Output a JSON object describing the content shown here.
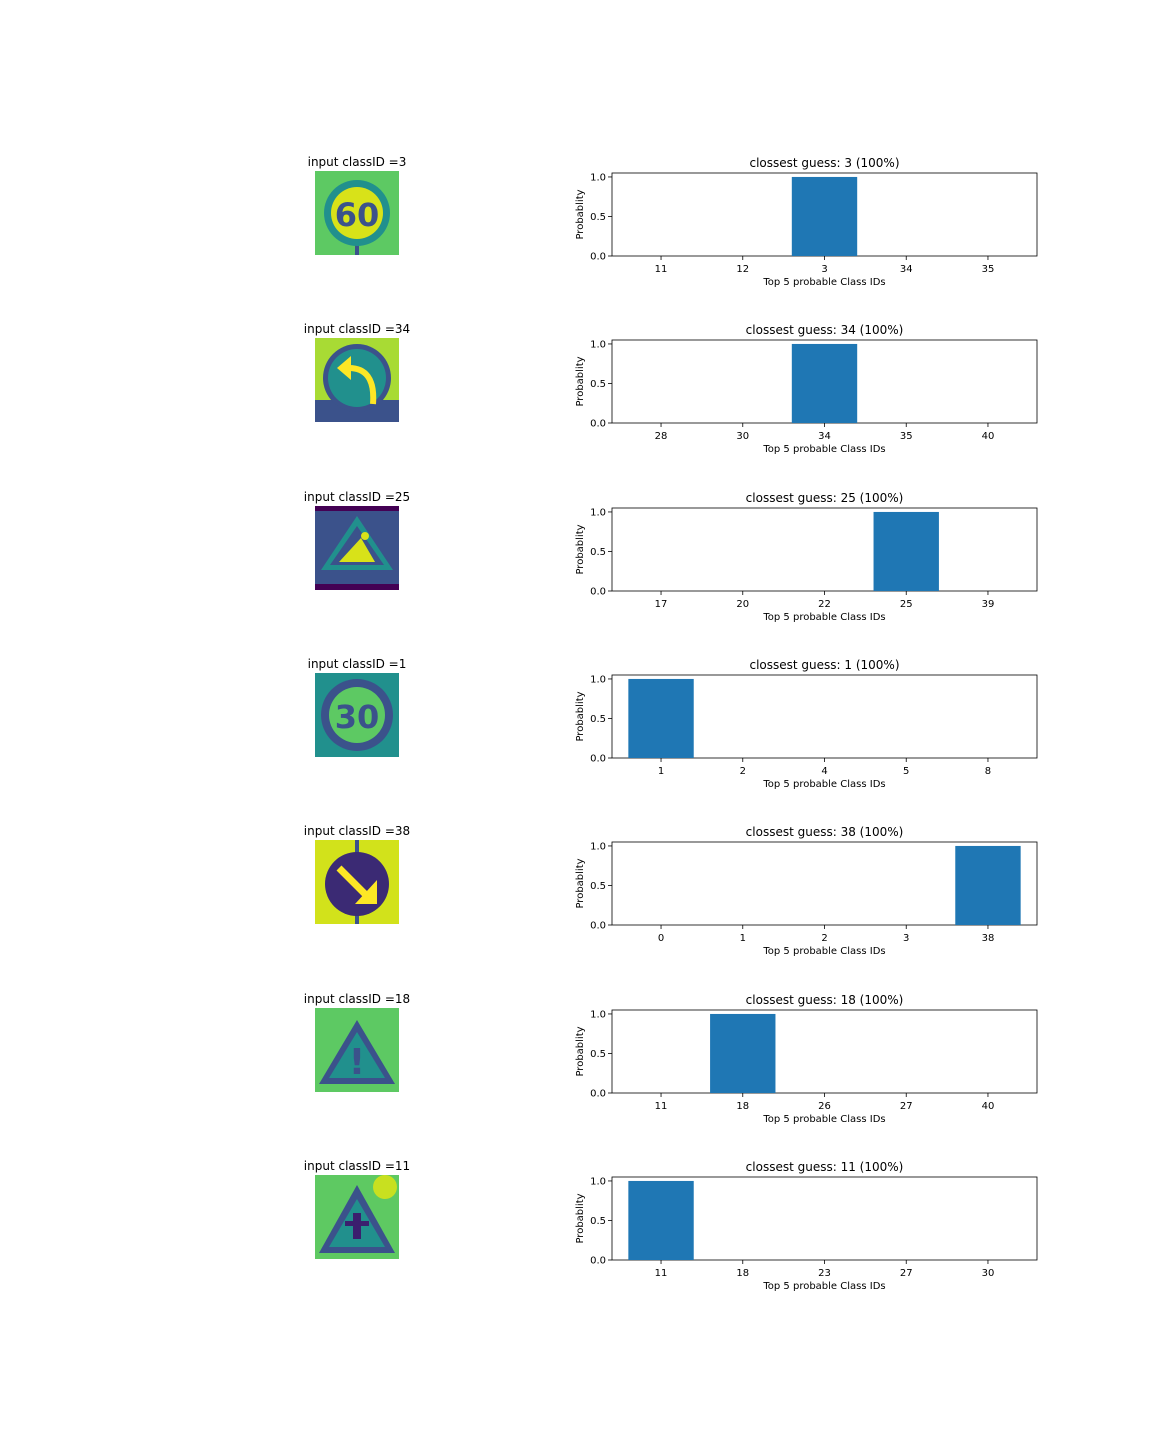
{
  "palette": {
    "bar": "#1f77b4",
    "viridis": [
      "#440154",
      "#3b528b",
      "#21908d",
      "#5dc963",
      "#fde725"
    ]
  },
  "rows": [
    {
      "input_label": "input classID =3",
      "sign_icon": "speed-limit-60-sign-icon",
      "sign_text": "60"
    },
    {
      "input_label": "input classID =34",
      "sign_icon": "turn-left-ahead-sign-icon",
      "sign_text": ""
    },
    {
      "input_label": "input classID =25",
      "sign_icon": "road-work-sign-icon",
      "sign_text": ""
    },
    {
      "input_label": "input classID =1",
      "sign_icon": "speed-limit-30-sign-icon",
      "sign_text": "30"
    },
    {
      "input_label": "input classID =38",
      "sign_icon": "keep-right-sign-icon",
      "sign_text": ""
    },
    {
      "input_label": "input classID =18",
      "sign_icon": "general-caution-sign-icon",
      "sign_text": "!"
    },
    {
      "input_label": "input classID =11",
      "sign_icon": "right-of-way-sign-icon",
      "sign_text": ""
    }
  ],
  "chart_data": [
    {
      "type": "bar",
      "title": "clossest guess: 3 (100%)",
      "xlabel": "Top 5 probable Class IDs",
      "ylabel": "Probablity",
      "categories": [
        "11",
        "12",
        "3",
        "34",
        "35"
      ],
      "values": [
        0,
        0,
        1.0,
        0,
        0
      ],
      "ylim": [
        0,
        1.05
      ],
      "yticks": [
        "0.0",
        "0.5",
        "1.0"
      ],
      "grid": false
    },
    {
      "type": "bar",
      "title": "clossest guess: 34 (100%)",
      "xlabel": "Top 5 probable Class IDs",
      "ylabel": "Probablity",
      "categories": [
        "28",
        "30",
        "34",
        "35",
        "40"
      ],
      "values": [
        0,
        0,
        1.0,
        0,
        0
      ],
      "ylim": [
        0,
        1.05
      ],
      "yticks": [
        "0.0",
        "0.5",
        "1.0"
      ],
      "grid": false
    },
    {
      "type": "bar",
      "title": "clossest guess: 25 (100%)",
      "xlabel": "Top 5 probable Class IDs",
      "ylabel": "Probablity",
      "categories": [
        "17",
        "20",
        "22",
        "25",
        "39"
      ],
      "values": [
        0,
        0,
        0,
        1.0,
        0
      ],
      "ylim": [
        0,
        1.05
      ],
      "yticks": [
        "0.0",
        "0.5",
        "1.0"
      ],
      "grid": false
    },
    {
      "type": "bar",
      "title": "clossest guess: 1 (100%)",
      "xlabel": "Top 5 probable Class IDs",
      "ylabel": "Probablity",
      "categories": [
        "1",
        "2",
        "4",
        "5",
        "8"
      ],
      "values": [
        1.0,
        0,
        0,
        0,
        0
      ],
      "ylim": [
        0,
        1.05
      ],
      "yticks": [
        "0.0",
        "0.5",
        "1.0"
      ],
      "grid": false
    },
    {
      "type": "bar",
      "title": "clossest guess: 38 (100%)",
      "xlabel": "Top 5 probable Class IDs",
      "ylabel": "Probablity",
      "categories": [
        "0",
        "1",
        "2",
        "3",
        "38"
      ],
      "values": [
        0,
        0,
        0,
        0,
        1.0
      ],
      "ylim": [
        0,
        1.05
      ],
      "yticks": [
        "0.0",
        "0.5",
        "1.0"
      ],
      "grid": false
    },
    {
      "type": "bar",
      "title": "clossest guess: 18 (100%)",
      "xlabel": "Top 5 probable Class IDs",
      "ylabel": "Probablity",
      "categories": [
        "11",
        "18",
        "26",
        "27",
        "40"
      ],
      "values": [
        0,
        1.0,
        0,
        0,
        0
      ],
      "ylim": [
        0,
        1.05
      ],
      "yticks": [
        "0.0",
        "0.5",
        "1.0"
      ],
      "grid": false
    },
    {
      "type": "bar",
      "title": "clossest guess: 11 (100%)",
      "xlabel": "Top 5 probable Class IDs",
      "ylabel": "Probablity",
      "categories": [
        "11",
        "18",
        "23",
        "27",
        "30"
      ],
      "values": [
        1.0,
        0,
        0,
        0,
        0
      ],
      "ylim": [
        0,
        1.05
      ],
      "yticks": [
        "0.0",
        "0.5",
        "1.0"
      ],
      "grid": false
    }
  ]
}
